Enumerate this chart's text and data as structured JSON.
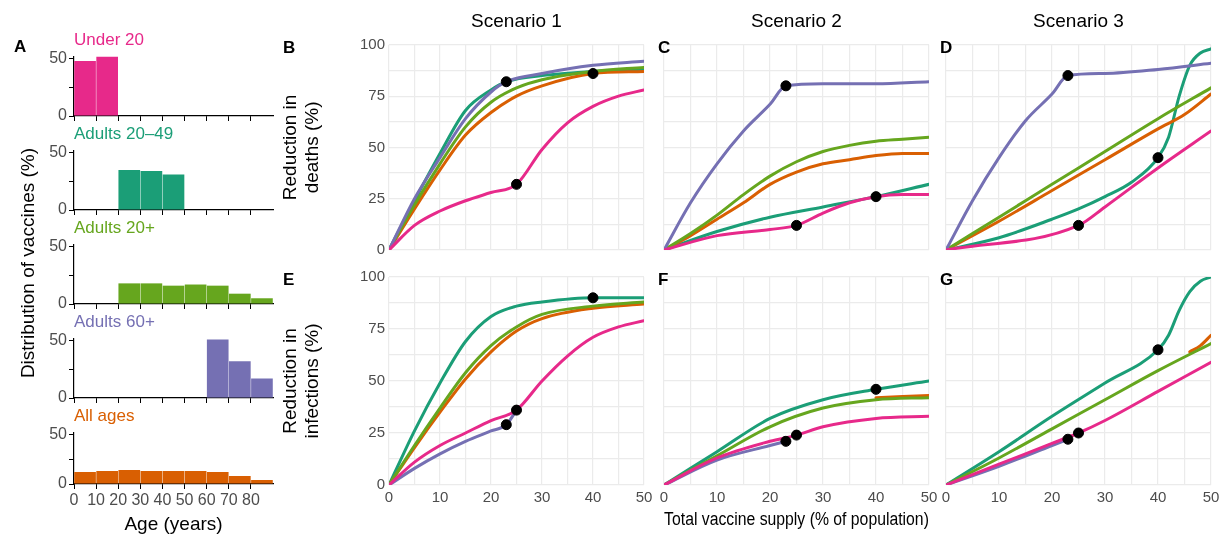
{
  "chart_data": [
    {
      "type": "histogram",
      "title": "Under 20",
      "annotations": [
        "A"
      ],
      "bins": [
        0,
        10,
        20,
        30,
        40,
        50,
        60,
        70,
        80,
        90
      ],
      "values": [
        48,
        52,
        0,
        0,
        0,
        0,
        0,
        0,
        0
      ],
      "color": "#e7298a",
      "xlim": [
        0,
        90
      ],
      "xticks": [
        0,
        10,
        20,
        30,
        40,
        50,
        60,
        70,
        80
      ],
      "ylim": [
        0,
        52
      ],
      "yticks": [
        0,
        {
          "value": 25,
          "label": null
        },
        50
      ],
      "tick_labels": "y"
    },
    {
      "type": "histogram",
      "title": "Adults 20–49",
      "bins": [
        0,
        10,
        20,
        30,
        40,
        50,
        60,
        70,
        80,
        90
      ],
      "values": [
        0,
        0,
        35,
        34,
        31,
        0,
        0,
        0,
        0
      ],
      "color": "#1b9e77",
      "xlim": [
        0,
        90
      ],
      "xticks": [
        0,
        10,
        20,
        30,
        40,
        50,
        60,
        70,
        80
      ],
      "ylim": [
        0,
        52
      ],
      "yticks": [
        0,
        {
          "value": 25,
          "label": null
        },
        50
      ],
      "tick_labels": "y"
    },
    {
      "type": "histogram",
      "title": "Adults 20+",
      "ylabel": "Distribution of vaccines (%)",
      "bins": [
        0,
        10,
        20,
        30,
        40,
        50,
        60,
        70,
        80,
        90
      ],
      "values": [
        0,
        0,
        18,
        18,
        16,
        17,
        16,
        9,
        5
      ],
      "color": "#66a61e",
      "xlim": [
        0,
        90
      ],
      "xticks": [
        0,
        10,
        20,
        30,
        40,
        50,
        60,
        70,
        80
      ],
      "ylim": [
        0,
        52
      ],
      "yticks": [
        0,
        {
          "value": 25,
          "label": null
        },
        50
      ],
      "tick_labels": "y"
    },
    {
      "type": "histogram",
      "title": "Adults 60+",
      "bins": [
        0,
        10,
        20,
        30,
        40,
        50,
        60,
        70,
        80,
        90
      ],
      "values": [
        0,
        0,
        0,
        0,
        0,
        0,
        51,
        32,
        17
      ],
      "color": "#7570b3",
      "xlim": [
        0,
        90
      ],
      "xticks": [
        0,
        10,
        20,
        30,
        40,
        50,
        60,
        70,
        80
      ],
      "ylim": [
        0,
        52
      ],
      "yticks": [
        0,
        {
          "value": 25,
          "label": null
        },
        50
      ],
      "tick_labels": "y"
    },
    {
      "type": "histogram",
      "title": "All ages",
      "xlabel": "Age (years)",
      "bins": [
        0,
        10,
        20,
        30,
        40,
        50,
        60,
        70,
        80,
        90
      ],
      "values": [
        12,
        13,
        14,
        13,
        13,
        13,
        12,
        8,
        4
      ],
      "color": "#d95f02",
      "xlim": [
        0,
        90
      ],
      "xticks": [
        0,
        10,
        20,
        30,
        40,
        50,
        60,
        70,
        80
      ],
      "ylim": [
        0,
        52
      ],
      "yticks": [
        0,
        {
          "value": 25,
          "label": null
        },
        50
      ]
    },
    {
      "type": "line",
      "title": "Scenario 1",
      "ylabel": "Reduction in deaths (%)",
      "annotations": [
        "B"
      ],
      "xlim": [
        0,
        50
      ],
      "xticks": [
        0,
        {
          "value": 5,
          "label": null
        },
        10,
        {
          "value": 15,
          "label": null
        },
        20,
        {
          "value": 25,
          "label": null
        },
        30,
        {
          "value": 35,
          "label": null
        },
        40,
        {
          "value": 45,
          "label": null
        },
        50
      ],
      "ylim": [
        0,
        100
      ],
      "yticks": [
        0,
        {
          "value": 12.5,
          "label": null
        },
        25,
        {
          "value": 37.5,
          "label": null
        },
        50,
        {
          "value": 62.5,
          "label": null
        },
        75,
        {
          "value": 87.5,
          "label": null
        },
        100
      ],
      "grid": true,
      "tick_labels": "y",
      "series": [
        {
          "color": "#1b9e77",
          "x": [
            0,
            5,
            10,
            15,
            20,
            23,
            30,
            40,
            50
          ],
          "values": [
            0,
            24,
            47,
            68,
            78,
            82,
            85,
            87,
            88
          ]
        },
        {
          "color": "#d95f02",
          "x": [
            0,
            5,
            10,
            15,
            20,
            25,
            30,
            40,
            50
          ],
          "values": [
            0,
            20,
            39,
            56,
            67,
            75,
            80,
            86,
            87
          ]
        },
        {
          "color": "#66a61e",
          "x": [
            0,
            5,
            10,
            15,
            20,
            25,
            30,
            40,
            50
          ],
          "values": [
            0,
            22,
            42,
            60,
            72,
            79,
            83,
            87,
            89
          ]
        },
        {
          "color": "#7570b3",
          "x": [
            0,
            5,
            10,
            15,
            20,
            23,
            30,
            40,
            50
          ],
          "values": [
            0,
            25,
            45,
            64,
            77,
            82,
            86,
            90,
            92
          ]
        },
        {
          "color": "#e7298a",
          "x": [
            0,
            5,
            10,
            15,
            20,
            25,
            30,
            35,
            40,
            45,
            50
          ],
          "values": [
            0,
            12,
            19,
            24,
            28,
            32,
            49,
            62,
            70,
            75,
            78
          ]
        },
        {
          "type": "scatter",
          "marker": "circle",
          "color": "#000000",
          "x": [
            23,
            25,
            40
          ],
          "values": [
            82,
            32,
            86
          ]
        }
      ]
    },
    {
      "type": "line",
      "title": "Scenario 2",
      "annotations": [
        "C"
      ],
      "xlim": [
        0,
        50
      ],
      "xticks": [
        0,
        {
          "value": 5,
          "label": null
        },
        10,
        {
          "value": 15,
          "label": null
        },
        20,
        {
          "value": 25,
          "label": null
        },
        30,
        {
          "value": 35,
          "label": null
        },
        40,
        {
          "value": 45,
          "label": null
        },
        50
      ],
      "ylim": [
        0,
        100
      ],
      "yticks": [
        0,
        {
          "value": 12.5,
          "label": null
        },
        25,
        {
          "value": 37.5,
          "label": null
        },
        50,
        {
          "value": 62.5,
          "label": null
        },
        75,
        {
          "value": 87.5,
          "label": null
        },
        100
      ],
      "grid": true,
      "tick_labels": false,
      "series": [
        {
          "color": "#1b9e77",
          "x": [
            0,
            10,
            20,
            30,
            40,
            50
          ],
          "values": [
            0,
            9,
            16,
            21,
            26,
            32
          ]
        },
        {
          "color": "#d95f02",
          "x": [
            0,
            5,
            10,
            15,
            20,
            25,
            30,
            35,
            40,
            45,
            50
          ],
          "values": [
            0,
            7,
            15,
            23,
            32,
            38,
            42,
            44,
            46,
            47,
            47
          ]
        },
        {
          "color": "#66a61e",
          "x": [
            0,
            5,
            10,
            15,
            20,
            25,
            30,
            35,
            40,
            45,
            50
          ],
          "values": [
            0,
            8,
            17,
            27,
            36,
            43,
            48,
            51,
            53,
            54,
            55
          ]
        },
        {
          "color": "#7570b3",
          "x": [
            0,
            5,
            10,
            15,
            20,
            23,
            30,
            40,
            50
          ],
          "values": [
            0,
            23,
            42,
            58,
            71,
            80,
            81,
            81,
            82
          ]
        },
        {
          "color": "#e7298a",
          "x": [
            0,
            10,
            20,
            25,
            30,
            35,
            40,
            45,
            50
          ],
          "values": [
            0,
            7,
            10,
            12,
            18,
            23,
            26,
            27,
            27
          ]
        },
        {
          "type": "scatter",
          "marker": "circle",
          "color": "#000000",
          "x": [
            23,
            25,
            40
          ],
          "values": [
            80,
            12,
            26
          ]
        }
      ]
    },
    {
      "type": "line",
      "title": "Scenario 3",
      "annotations": [
        "D"
      ],
      "xlim": [
        0,
        50
      ],
      "xticks": [
        0,
        {
          "value": 5,
          "label": null
        },
        10,
        {
          "value": 15,
          "label": null
        },
        20,
        {
          "value": 25,
          "label": null
        },
        30,
        {
          "value": 35,
          "label": null
        },
        40,
        {
          "value": 45,
          "label": null
        },
        50
      ],
      "ylim": [
        0,
        100
      ],
      "yticks": [
        0,
        {
          "value": 12.5,
          "label": null
        },
        25,
        {
          "value": 37.5,
          "label": null
        },
        50,
        {
          "value": 62.5,
          "label": null
        },
        75,
        {
          "value": 87.5,
          "label": null
        },
        100
      ],
      "grid": true,
      "tick_labels": false,
      "series": [
        {
          "color": "#1b9e77",
          "x": [
            0,
            10,
            20,
            25,
            30,
            35,
            40,
            42,
            44,
            46,
            48,
            50
          ],
          "values": [
            0,
            6,
            15,
            20,
            26,
            33,
            45,
            55,
            75,
            90,
            96,
            98
          ]
        },
        {
          "color": "#d95f02",
          "x": [
            0,
            10,
            20,
            30,
            40,
            45,
            50
          ],
          "values": [
            0,
            14,
            29,
            44,
            59,
            66,
            76
          ]
        },
        {
          "color": "#66a61e",
          "x": [
            0,
            10,
            20,
            30,
            40,
            50
          ],
          "values": [
            0,
            16,
            32,
            48,
            64,
            79
          ]
        },
        {
          "color": "#7570b3",
          "x": [
            0,
            5,
            10,
            15,
            20,
            23,
            30,
            40,
            50
          ],
          "values": [
            0,
            24,
            45,
            63,
            76,
            85,
            86,
            88,
            91
          ]
        },
        {
          "color": "#e7298a",
          "x": [
            0,
            25,
            30,
            40,
            50
          ],
          "values": [
            0,
            12,
            21,
            40,
            58
          ]
        },
        {
          "type": "scatter",
          "marker": "circle",
          "color": "#000000",
          "x": [
            23,
            40,
            25
          ],
          "values": [
            85,
            45,
            12
          ]
        }
      ]
    },
    {
      "type": "line",
      "ylabel": "Reduction in infections (%)",
      "annotations": [
        "E"
      ],
      "xlim": [
        0,
        50
      ],
      "xticks": [
        0,
        {
          "value": 5,
          "label": null
        },
        10,
        {
          "value": 15,
          "label": null
        },
        20,
        {
          "value": 25,
          "label": null
        },
        30,
        {
          "value": 35,
          "label": null
        },
        40,
        {
          "value": 45,
          "label": null
        },
        50
      ],
      "ylim": [
        0,
        100
      ],
      "yticks": [
        0,
        {
          "value": 12.5,
          "label": null
        },
        25,
        {
          "value": 37.5,
          "label": null
        },
        50,
        {
          "value": 62.5,
          "label": null
        },
        75,
        {
          "value": 87.5,
          "label": null
        },
        100
      ],
      "grid": true,
      "series": [
        {
          "color": "#1b9e77",
          "x": [
            0,
            5,
            10,
            15,
            20,
            25,
            30,
            40,
            50
          ],
          "values": [
            0,
            26,
            49,
            69,
            81,
            86,
            88,
            90,
            90
          ]
        },
        {
          "color": "#d95f02",
          "x": [
            0,
            5,
            10,
            15,
            20,
            25,
            30,
            40,
            50
          ],
          "values": [
            0,
            18,
            35,
            51,
            64,
            74,
            80,
            85,
            87
          ]
        },
        {
          "color": "#66a61e",
          "x": [
            0,
            5,
            10,
            15,
            20,
            25,
            30,
            40,
            50
          ],
          "values": [
            0,
            19,
            37,
            54,
            67,
            76,
            82,
            86,
            88
          ]
        },
        {
          "color": "#7570b3",
          "x": [
            0,
            5,
            10,
            15,
            20,
            23,
            25
          ],
          "values": [
            0,
            8,
            15,
            21,
            26,
            29,
            36
          ]
        },
        {
          "color": "#e7298a",
          "x": [
            0,
            5,
            10,
            15,
            20,
            25,
            30,
            35,
            40,
            45,
            50
          ],
          "values": [
            0,
            11,
            19,
            25,
            31,
            36,
            50,
            62,
            71,
            76,
            79
          ]
        },
        {
          "type": "scatter",
          "marker": "circle",
          "color": "#000000",
          "x": [
            23,
            25,
            40
          ],
          "values": [
            29,
            36,
            90
          ]
        }
      ]
    },
    {
      "type": "line",
      "xlabel": "Total vaccine supply (% of population)",
      "annotations": [
        "F"
      ],
      "xlim": [
        0,
        50
      ],
      "xticks": [
        0,
        {
          "value": 5,
          "label": null
        },
        10,
        {
          "value": 15,
          "label": null
        },
        20,
        {
          "value": 25,
          "label": null
        },
        30,
        {
          "value": 35,
          "label": null
        },
        40,
        {
          "value": 45,
          "label": null
        },
        50
      ],
      "ylim": [
        0,
        100
      ],
      "yticks": [
        0,
        {
          "value": 12.5,
          "label": null
        },
        25,
        {
          "value": 37.5,
          "label": null
        },
        50,
        {
          "value": 62.5,
          "label": null
        },
        75,
        {
          "value": 87.5,
          "label": null
        },
        100
      ],
      "grid": true,
      "tick_labels": "x",
      "series": [
        {
          "color": "#1b9e77",
          "x": [
            0,
            10,
            20,
            30,
            40,
            50
          ],
          "values": [
            0,
            16,
            32,
            41,
            46,
            50
          ]
        },
        {
          "color": "#d95f02",
          "x": [
            40,
            50
          ],
          "values": [
            42,
            43
          ]
        },
        {
          "color": "#66a61e",
          "x": [
            0,
            10,
            20,
            30,
            40,
            50
          ],
          "values": [
            0,
            14,
            28,
            37,
            41,
            42
          ]
        },
        {
          "color": "#7570b3",
          "x": [
            0,
            10,
            20,
            23
          ],
          "values": [
            0,
            12,
            19,
            21
          ]
        },
        {
          "color": "#e7298a",
          "x": [
            0,
            10,
            20,
            25,
            30,
            40,
            50
          ],
          "values": [
            0,
            13,
            21,
            24,
            28,
            32,
            33
          ]
        },
        {
          "type": "scatter",
          "marker": "circle",
          "color": "#000000",
          "x": [
            23,
            25,
            40
          ],
          "values": [
            21,
            24,
            46
          ]
        }
      ]
    },
    {
      "type": "line",
      "annotations": [
        "G"
      ],
      "xlim": [
        0,
        50
      ],
      "xticks": [
        0,
        {
          "value": 5,
          "label": null
        },
        10,
        {
          "value": 15,
          "label": null
        },
        20,
        {
          "value": 25,
          "label": null
        },
        30,
        {
          "value": 35,
          "label": null
        },
        40,
        {
          "value": 45,
          "label": null
        },
        50
      ],
      "ylim": [
        0,
        100
      ],
      "yticks": [
        0,
        {
          "value": 12.5,
          "label": null
        },
        25,
        {
          "value": 37.5,
          "label": null
        },
        50,
        {
          "value": 62.5,
          "label": null
        },
        75,
        {
          "value": 87.5,
          "label": null
        },
        100
      ],
      "grid": true,
      "tick_labels": "x",
      "series": [
        {
          "color": "#1b9e77",
          "x": [
            0,
            10,
            20,
            30,
            40,
            42,
            44,
            46,
            48,
            50
          ],
          "values": [
            0,
            16,
            33,
            49,
            65,
            72,
            84,
            93,
            98,
            100
          ]
        },
        {
          "color": "#d95f02",
          "x": [
            46,
            48,
            50
          ],
          "values": [
            64,
            67,
            72
          ]
        },
        {
          "color": "#66a61e",
          "x": [
            0,
            10,
            20,
            30,
            40,
            50
          ],
          "values": [
            0,
            13,
            27,
            41,
            55,
            68
          ]
        },
        {
          "color": "#7570b3",
          "x": [
            0,
            10,
            20,
            23
          ],
          "values": [
            0,
            9,
            19,
            22
          ]
        },
        {
          "color": "#e7298a",
          "x": [
            0,
            10,
            20,
            25,
            30,
            40,
            50
          ],
          "values": [
            0,
            10,
            20,
            25,
            31,
            45,
            59
          ]
        },
        {
          "type": "scatter",
          "marker": "circle",
          "color": "#000000",
          "x": [
            23,
            25,
            40
          ],
          "values": [
            22,
            25,
            65
          ]
        }
      ]
    }
  ]
}
